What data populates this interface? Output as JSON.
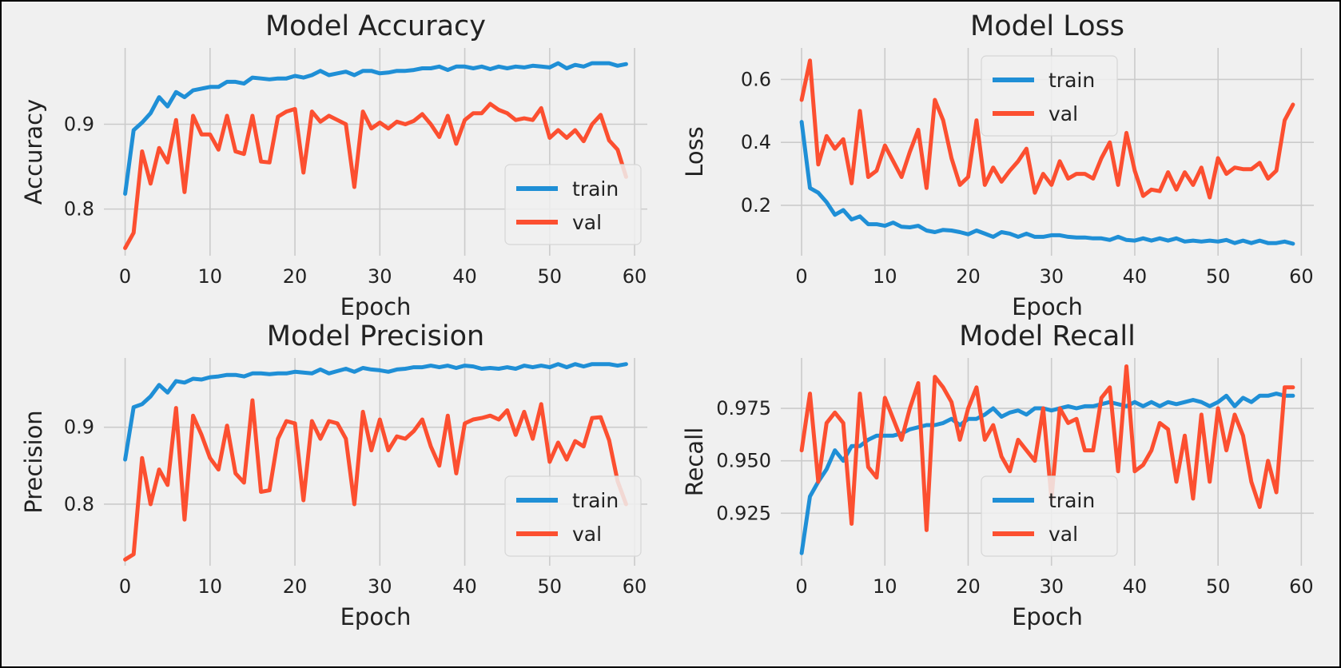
{
  "figure": {
    "background": "#f0f0f0",
    "train_color": "#1f8fd6",
    "val_color": "#fc4f30"
  },
  "chart_data": [
    {
      "type": "line",
      "title": "Model Accuracy",
      "xlabel": "Epoch",
      "ylabel": "Accuracy",
      "xlim": [
        -2.5,
        61.5
      ],
      "ylim": [
        0.745,
        0.99
      ],
      "xticks": [
        0,
        10,
        20,
        30,
        40,
        50,
        60
      ],
      "yticks": [
        0.8,
        0.9
      ],
      "yticklabels": [
        "0.8",
        "0.9"
      ],
      "grid": true,
      "legend": "lower right",
      "x": [
        0,
        1,
        2,
        3,
        4,
        5,
        6,
        7,
        8,
        9,
        10,
        11,
        12,
        13,
        14,
        15,
        16,
        17,
        18,
        19,
        20,
        21,
        22,
        23,
        24,
        25,
        26,
        27,
        28,
        29,
        30,
        31,
        32,
        33,
        34,
        35,
        36,
        37,
        38,
        39,
        40,
        41,
        42,
        43,
        44,
        45,
        46,
        47,
        48,
        49,
        50,
        51,
        52,
        53,
        54,
        55,
        56,
        57,
        58,
        59
      ],
      "series": [
        {
          "name": "train",
          "values": [
            0.818,
            0.893,
            0.902,
            0.913,
            0.932,
            0.921,
            0.938,
            0.932,
            0.94,
            0.942,
            0.944,
            0.944,
            0.95,
            0.95,
            0.948,
            0.955,
            0.954,
            0.953,
            0.954,
            0.954,
            0.957,
            0.955,
            0.958,
            0.963,
            0.958,
            0.96,
            0.962,
            0.958,
            0.963,
            0.963,
            0.96,
            0.961,
            0.963,
            0.963,
            0.964,
            0.966,
            0.966,
            0.968,
            0.964,
            0.968,
            0.968,
            0.966,
            0.968,
            0.965,
            0.968,
            0.966,
            0.968,
            0.967,
            0.969,
            0.968,
            0.967,
            0.972,
            0.966,
            0.97,
            0.968,
            0.972,
            0.972,
            0.972,
            0.969,
            0.971
          ]
        },
        {
          "name": "val",
          "values": [
            0.754,
            0.772,
            0.868,
            0.83,
            0.872,
            0.855,
            0.905,
            0.82,
            0.91,
            0.888,
            0.888,
            0.87,
            0.91,
            0.868,
            0.865,
            0.91,
            0.856,
            0.855,
            0.909,
            0.915,
            0.918,
            0.843,
            0.915,
            0.903,
            0.91,
            0.905,
            0.9,
            0.826,
            0.915,
            0.895,
            0.902,
            0.895,
            0.903,
            0.9,
            0.904,
            0.912,
            0.9,
            0.885,
            0.91,
            0.877,
            0.905,
            0.913,
            0.913,
            0.924,
            0.917,
            0.913,
            0.905,
            0.907,
            0.905,
            0.919,
            0.884,
            0.893,
            0.884,
            0.893,
            0.88,
            0.9,
            0.911,
            0.881,
            0.87,
            0.838
          ]
        }
      ]
    },
    {
      "type": "line",
      "title": "Model Loss",
      "xlabel": "Epoch",
      "ylabel": "Loss",
      "xlim": [
        -2.5,
        61.5
      ],
      "ylim": [
        0.04,
        0.7
      ],
      "xticks": [
        0,
        10,
        20,
        30,
        40,
        50,
        60
      ],
      "yticks": [
        0.2,
        0.4,
        0.6
      ],
      "yticklabels": [
        "0.2",
        "0.4",
        "0.6"
      ],
      "grid": true,
      "legend": "upper center",
      "x": [
        0,
        1,
        2,
        3,
        4,
        5,
        6,
        7,
        8,
        9,
        10,
        11,
        12,
        13,
        14,
        15,
        16,
        17,
        18,
        19,
        20,
        21,
        22,
        23,
        24,
        25,
        26,
        27,
        28,
        29,
        30,
        31,
        32,
        33,
        34,
        35,
        36,
        37,
        38,
        39,
        40,
        41,
        42,
        43,
        44,
        45,
        46,
        47,
        48,
        49,
        50,
        51,
        52,
        53,
        54,
        55,
        56,
        57,
        58,
        59
      ],
      "series": [
        {
          "name": "train",
          "values": [
            0.465,
            0.255,
            0.24,
            0.21,
            0.17,
            0.185,
            0.155,
            0.165,
            0.14,
            0.14,
            0.135,
            0.145,
            0.132,
            0.13,
            0.135,
            0.12,
            0.115,
            0.122,
            0.12,
            0.115,
            0.108,
            0.12,
            0.11,
            0.1,
            0.115,
            0.11,
            0.1,
            0.11,
            0.1,
            0.1,
            0.105,
            0.105,
            0.1,
            0.098,
            0.098,
            0.095,
            0.095,
            0.09,
            0.1,
            0.09,
            0.088,
            0.095,
            0.088,
            0.095,
            0.088,
            0.095,
            0.085,
            0.088,
            0.085,
            0.088,
            0.085,
            0.09,
            0.08,
            0.088,
            0.08,
            0.088,
            0.08,
            0.08,
            0.085,
            0.078
          ]
        },
        {
          "name": "val",
          "values": [
            0.535,
            0.66,
            0.33,
            0.42,
            0.38,
            0.41,
            0.27,
            0.5,
            0.29,
            0.31,
            0.39,
            0.34,
            0.29,
            0.37,
            0.44,
            0.255,
            0.535,
            0.47,
            0.35,
            0.265,
            0.29,
            0.47,
            0.265,
            0.32,
            0.275,
            0.31,
            0.34,
            0.38,
            0.24,
            0.3,
            0.265,
            0.34,
            0.285,
            0.3,
            0.3,
            0.285,
            0.35,
            0.4,
            0.265,
            0.43,
            0.31,
            0.23,
            0.25,
            0.245,
            0.305,
            0.25,
            0.305,
            0.265,
            0.32,
            0.225,
            0.35,
            0.3,
            0.32,
            0.315,
            0.315,
            0.335,
            0.285,
            0.31,
            0.47,
            0.52
          ]
        }
      ]
    },
    {
      "type": "line",
      "title": "Model Precision",
      "xlabel": "Epoch",
      "ylabel": "Precision",
      "xlim": [
        -2.5,
        61.5
      ],
      "ylim": [
        0.72,
        0.99
      ],
      "xticks": [
        0,
        10,
        20,
        30,
        40,
        50,
        60
      ],
      "yticks": [
        0.8,
        0.9
      ],
      "yticklabels": [
        "0.8",
        "0.9"
      ],
      "grid": true,
      "legend": "lower right",
      "x": [
        0,
        1,
        2,
        3,
        4,
        5,
        6,
        7,
        8,
        9,
        10,
        11,
        12,
        13,
        14,
        15,
        16,
        17,
        18,
        19,
        20,
        21,
        22,
        23,
        24,
        25,
        26,
        27,
        28,
        29,
        30,
        31,
        32,
        33,
        34,
        35,
        36,
        37,
        38,
        39,
        40,
        41,
        42,
        43,
        44,
        45,
        46,
        47,
        48,
        49,
        50,
        51,
        52,
        53,
        54,
        55,
        56,
        57,
        58,
        59
      ],
      "series": [
        {
          "name": "train",
          "values": [
            0.858,
            0.926,
            0.93,
            0.94,
            0.955,
            0.945,
            0.96,
            0.958,
            0.963,
            0.962,
            0.965,
            0.966,
            0.968,
            0.968,
            0.966,
            0.97,
            0.97,
            0.969,
            0.97,
            0.97,
            0.972,
            0.971,
            0.97,
            0.975,
            0.97,
            0.973,
            0.976,
            0.972,
            0.977,
            0.975,
            0.974,
            0.972,
            0.975,
            0.976,
            0.978,
            0.978,
            0.98,
            0.978,
            0.98,
            0.977,
            0.98,
            0.979,
            0.976,
            0.977,
            0.976,
            0.978,
            0.976,
            0.98,
            0.978,
            0.98,
            0.978,
            0.982,
            0.978,
            0.982,
            0.979,
            0.982,
            0.982,
            0.982,
            0.98,
            0.982
          ]
        },
        {
          "name": "val",
          "values": [
            0.728,
            0.735,
            0.86,
            0.8,
            0.845,
            0.825,
            0.925,
            0.78,
            0.915,
            0.89,
            0.86,
            0.845,
            0.902,
            0.84,
            0.828,
            0.935,
            0.816,
            0.818,
            0.885,
            0.908,
            0.905,
            0.805,
            0.908,
            0.885,
            0.908,
            0.905,
            0.885,
            0.8,
            0.92,
            0.87,
            0.91,
            0.87,
            0.888,
            0.885,
            0.895,
            0.91,
            0.875,
            0.85,
            0.915,
            0.84,
            0.905,
            0.91,
            0.912,
            0.915,
            0.91,
            0.922,
            0.89,
            0.92,
            0.885,
            0.93,
            0.855,
            0.88,
            0.858,
            0.882,
            0.875,
            0.912,
            0.913,
            0.883,
            0.83,
            0.8
          ]
        }
      ]
    },
    {
      "type": "line",
      "title": "Model Recall",
      "xlabel": "Epoch",
      "ylabel": "Recall",
      "xlim": [
        -2.5,
        61.5
      ],
      "ylim": [
        0.9,
        0.999
      ],
      "xticks": [
        0,
        10,
        20,
        30,
        40,
        50,
        60
      ],
      "yticks": [
        0.925,
        0.95,
        0.975
      ],
      "yticklabels": [
        "0.925",
        "0.950",
        "0.975"
      ],
      "grid": true,
      "legend": "lower center",
      "x": [
        0,
        1,
        2,
        3,
        4,
        5,
        6,
        7,
        8,
        9,
        10,
        11,
        12,
        13,
        14,
        15,
        16,
        17,
        18,
        19,
        20,
        21,
        22,
        23,
        24,
        25,
        26,
        27,
        28,
        29,
        30,
        31,
        32,
        33,
        34,
        35,
        36,
        37,
        38,
        39,
        40,
        41,
        42,
        43,
        44,
        45,
        46,
        47,
        48,
        49,
        50,
        51,
        52,
        53,
        54,
        55,
        56,
        57,
        58,
        59
      ],
      "series": [
        {
          "name": "train",
          "values": [
            0.906,
            0.933,
            0.94,
            0.946,
            0.955,
            0.95,
            0.957,
            0.957,
            0.96,
            0.962,
            0.962,
            0.962,
            0.963,
            0.965,
            0.966,
            0.967,
            0.967,
            0.968,
            0.97,
            0.967,
            0.97,
            0.97,
            0.972,
            0.975,
            0.971,
            0.973,
            0.974,
            0.972,
            0.975,
            0.975,
            0.974,
            0.975,
            0.976,
            0.975,
            0.976,
            0.976,
            0.977,
            0.978,
            0.977,
            0.976,
            0.978,
            0.976,
            0.978,
            0.976,
            0.978,
            0.977,
            0.978,
            0.979,
            0.978,
            0.976,
            0.978,
            0.981,
            0.976,
            0.98,
            0.978,
            0.981,
            0.981,
            0.982,
            0.981,
            0.981
          ]
        },
        {
          "name": "val",
          "values": [
            0.955,
            0.982,
            0.94,
            0.968,
            0.973,
            0.968,
            0.92,
            0.982,
            0.947,
            0.942,
            0.98,
            0.97,
            0.96,
            0.975,
            0.987,
            0.917,
            0.99,
            0.985,
            0.978,
            0.96,
            0.975,
            0.985,
            0.96,
            0.967,
            0.952,
            0.945,
            0.96,
            0.955,
            0.95,
            0.975,
            0.932,
            0.975,
            0.968,
            0.97,
            0.955,
            0.955,
            0.98,
            0.985,
            0.945,
            0.995,
            0.945,
            0.948,
            0.955,
            0.968,
            0.965,
            0.94,
            0.962,
            0.932,
            0.972,
            0.94,
            0.975,
            0.955,
            0.972,
            0.962,
            0.94,
            0.928,
            0.95,
            0.935,
            0.985,
            0.985
          ]
        }
      ]
    }
  ]
}
